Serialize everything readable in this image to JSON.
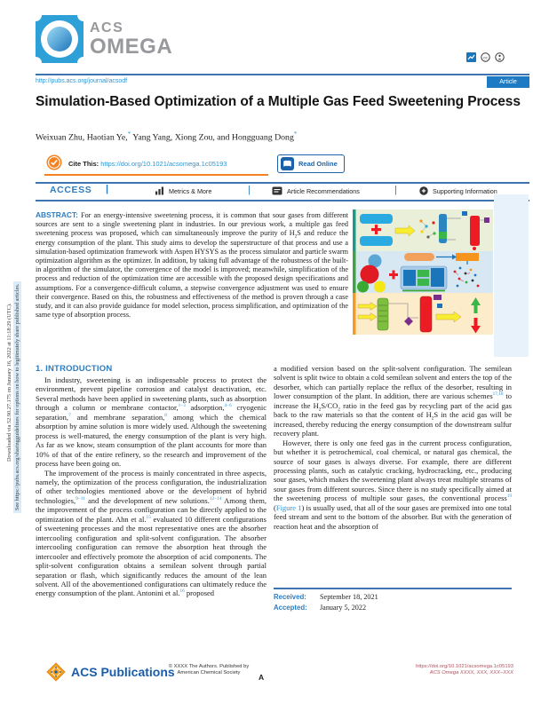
{
  "sidebar": {
    "downloaded_line": "Downloaded via 52.90.27.175 on January 16, 2022 at 11:18:29 (UTC).",
    "sharing_line": "See https://pubs.acs.org/sharingguidelines for options on how to legitimately share published articles."
  },
  "header": {
    "logo_acs": "ACS",
    "logo_omega": "OMEGA",
    "journal_url": "http://pubs.acs.org/journal/acsodf",
    "article_badge": "Article"
  },
  "title_block": {
    "title": "Simulation-Based Optimization of a Multiple Gas Feed Sweetening Process",
    "authors_1": "Weixuan Zhu, Haotian Ye,",
    "star_1": "*",
    "authors_2": " Yang Yang, Xiong Zou, and Hongguang Dong",
    "star_2": "*"
  },
  "cite_bar": {
    "cite_label": "Cite This:",
    "cite_link": "https://doi.org/10.1021/acsomega.1c05193",
    "read_online": "Read Online"
  },
  "access_bar": {
    "access": "ACCESS",
    "pipe": "|",
    "metrics": "Metrics & More",
    "recommendations": "Article Recommendations",
    "supporting": "Supporting Information",
    "separator": "|"
  },
  "abstract": {
    "label": "ABSTRACT:",
    "segments": [
      {
        "t": "For an energy-intensive sweetening process, it is common that sour gases from different sources are sent to a single sweetening plant in industries. In our previous work, a multiple gas feed sweetening process was proposed, which can simultaneously improve the purity of H"
      },
      {
        "t": "2",
        "s": "sub"
      },
      {
        "t": "S and reduce the energy consumption of the plant. This study aims to develop the superstructure of that process and use a simulation-based optimization framework with Aspen HYSYS as the process simulator and particle swarm optimization algorithm as the optimizer. In addition, by taking full advantage of the robustness of the built-in algorithm of the simulator, the convergence of the model is improved; meanwhile, simplification of the process and reduction of the optimization time are accessible with the proposed design specifications and assumptions. For a convergence-difficult column, a stepwise convergence adjustment was used to ensure their convergence. Based on this, the robustness and effectiveness of the method is proven through a case study, and it can also provide guidance for model selection, process simplification, and optimization of the same type of absorption process."
      }
    ]
  },
  "intro": {
    "heading": "1. INTRODUCTION",
    "left_p1": [
      {
        "t": "In industry, sweetening is an indispensable process to protect the environment, prevent pipeline corrosion and catalyst deactivation, etc. Several methods have been applied in sweetening plants, such as absorption through a column or membrane contactor,"
      },
      {
        "t": "1−3",
        "s": "sup"
      },
      {
        "t": " adsorption,"
      },
      {
        "t": "4−6",
        "s": "sup"
      },
      {
        "t": " cryogenic separation,"
      },
      {
        "t": "7",
        "s": "sup"
      },
      {
        "t": " and membrane separation,"
      },
      {
        "t": "8",
        "s": "sup"
      },
      {
        "t": " among which the chemical absorption by amine solution is more widely used. Although the sweetening process is well-matured, the energy consumption of the plant is very high. As far as we know, steam consumption of the plant accounts for more than 10% of that of the entire refinery, so the research and improvement of the process have been going on."
      }
    ],
    "left_p2": [
      {
        "t": "The improvement of the process is mainly concentrated in three aspects, namely, the optimization of the process configuration, the industrialization of other technologies mentioned above or the development of hybrid technologies,"
      },
      {
        "t": "9−11",
        "s": "sup"
      },
      {
        "t": " and the development of new solutions."
      },
      {
        "t": "12−14",
        "s": "sup"
      },
      {
        "t": " Among them, the improvement of the process configuration can be directly applied to the optimization of the plant. Ahn et al."
      },
      {
        "t": "15",
        "s": "sup"
      },
      {
        "t": " evaluated 10 different configurations of sweetening processes and the most representative ones are the absorber intercooling configuration and split-solvent configuration. The absorber intercooling configuration can remove the absorption heat through the intercooler and effectively promote the absorption of acid components. The split-solvent configuration obtains a semilean solvent through partial separation or flash, which significantly reduces the amount of the lean solvent. All of the abovementioned configurations can ultimately reduce the energy consumption of the plant. Antonini et al."
      },
      {
        "t": "16",
        "s": "sup"
      },
      {
        "t": " proposed"
      }
    ],
    "right_p1": [
      {
        "t": "a modified version based on the split-solvent configuration. The semilean solvent is split twice to obtain a cold semilean solvent and enters the top of the desorber, which can partially replace the reflux of the desorber, resulting in lower consumption of the plant. In addition, there are various schemes"
      },
      {
        "t": "17,18",
        "s": "sup"
      },
      {
        "t": " to increase the H"
      },
      {
        "t": "2",
        "s": "sub"
      },
      {
        "t": "S/CO"
      },
      {
        "t": "2",
        "s": "sub"
      },
      {
        "t": " ratio in the feed gas by recycling part of the acid gas back to the raw materials so that the content of H"
      },
      {
        "t": "2",
        "s": "sub"
      },
      {
        "t": "S in the acid gas will be increased, thereby reducing the energy consumption of the downstream sulfur recovery plant."
      }
    ],
    "right_p2": [
      {
        "t": "However, there is only one feed gas in the current process configuration, but whether it is petrochemical, coal chemical, or natural gas chemical, the source of sour gases is always diverse. For example, there are different processing plants, such as catalytic cracking, hydrocracking, etc., producing sour gases, which makes the sweetening plant always treat multiple streams of sour gases from different sources. Since there is no study specifically aimed at the sweetening process of multiple sour gases, the conventional process"
      },
      {
        "t": "19",
        "s": "sup"
      },
      {
        "t": " ("
      },
      {
        "t": "Figure 1",
        "s": "link"
      },
      {
        "t": ") is usually used, that all of the sour gases are premixed into one total feed stream and sent to the bottom of the absorber. But with the generation of reaction heat and the absorption of"
      }
    ]
  },
  "dates": {
    "received_label": "Received:",
    "received_value": "September 18, 2021",
    "accepted_label": "Accepted:",
    "accepted_value": "January 5, 2022"
  },
  "footer": {
    "publisher": "ACS Publications",
    "copyright_line1": "© XXXX The Authors. Published by",
    "copyright_line2": "American Chemical Society",
    "page_letter": "A",
    "doi": "https://doi.org/10.1021/acsomega.1c05193",
    "citation": "ACS Omega XXXX, XXX, XXX−XXX"
  },
  "colors": {
    "accent_blue": "#3d74b0",
    "link_blue": "#3095d2",
    "heading_blue": "#2d7dc1",
    "orange": "#f58220",
    "footer_red": "#ad5560",
    "badge_blue": "#1e7ac2"
  }
}
